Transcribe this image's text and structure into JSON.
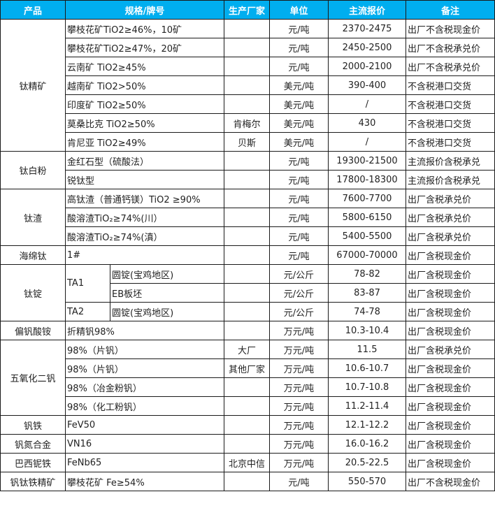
{
  "colors": {
    "header_bg": "#00aeef",
    "header_text": "#ffffff",
    "border": "#1a1a1a"
  },
  "headers": [
    "产品",
    "规格/牌号",
    "生产厂家",
    "单位",
    "主流报价",
    "备注"
  ],
  "groups": [
    {
      "product": "钛精矿",
      "items": [
        {
          "spec": "攀枝花矿TiO2≥46%，10矿",
          "maker": "",
          "unit": "元/吨",
          "price": "2370-2475",
          "note": "出厂不含税现金价"
        },
        {
          "spec": "攀枝花矿TiO2≥47%，20矿",
          "maker": "",
          "unit": "元/吨",
          "price": "2450-2500",
          "note": "出厂不含税承兑价"
        },
        {
          "spec": "云南矿 TiO2≥45%",
          "maker": "",
          "unit": "元/吨",
          "price": "2000-2100",
          "note": "出厂不含税承兑价"
        },
        {
          "spec": "越南矿 TiO2>50%",
          "maker": "",
          "unit": "美元/吨",
          "price": "390-400",
          "note": "不含税港口交货"
        },
        {
          "spec": "印度矿 TiO2≥50%",
          "maker": "",
          "unit": "美元/吨",
          "price": "/",
          "note": "不含税港口交货"
        },
        {
          "spec": "莫桑比克 TiO2≥50%",
          "maker": "肯梅尔",
          "unit": "美元/吨",
          "price": "430",
          "note": "不含税港口交货"
        },
        {
          "spec": "肯尼亚 TiO2≥49%",
          "maker": "贝斯",
          "unit": "美元/吨",
          "price": "/",
          "note": "不含税港口交货"
        }
      ]
    },
    {
      "product": "钛白粉",
      "items": [
        {
          "spec": "金红石型（硫酸法）",
          "maker": "",
          "unit": "元/吨",
          "price": "19300-21500",
          "note": "主流报价含税承兑"
        },
        {
          "spec": "锐钛型",
          "maker": "",
          "unit": "元/吨",
          "price": "17800-18300",
          "note": "主流报价含税承兑"
        }
      ]
    },
    {
      "product": "钛渣",
      "items": [
        {
          "spec": "高钛渣（普通钙镁）TiO2 ≥90%",
          "maker": "",
          "unit": "元/吨",
          "price": "7600-7700",
          "note": "出厂含税承兑价"
        },
        {
          "spec": "酸溶渣TiO₂≥74%(川）",
          "maker": "",
          "unit": "元/吨",
          "price": "5800-6150",
          "note": "出厂含税承兑价"
        },
        {
          "spec": "酸溶渣TiO₂≥74%(滇）",
          "maker": "",
          "unit": "元/吨",
          "price": "5400-5500",
          "note": "出厂含税承兑价"
        }
      ]
    },
    {
      "product": "海绵钛",
      "items": [
        {
          "spec": "1#",
          "maker": "",
          "unit": "元/吨",
          "price": "67000-70000",
          "note": "出厂含税现金价"
        }
      ]
    },
    {
      "product": "钛锭",
      "items": [
        {
          "grade": "TA1",
          "spec": "圆锭(宝鸡地区)",
          "maker": "",
          "unit": "元/公斤",
          "price": "78-82",
          "note": "出厂含税现金价"
        },
        {
          "grade": "TA1",
          "spec": "EB板坯",
          "maker": "",
          "unit": "元/公斤",
          "price": "83-87",
          "note": "出厂含税现金价"
        },
        {
          "grade": "TA2",
          "spec": "圆锭(宝鸡地区)",
          "maker": "",
          "unit": "元/公斤",
          "price": "74-78",
          "note": "出厂含税现金价"
        }
      ]
    },
    {
      "product": "偏钒酸铵",
      "items": [
        {
          "spec": "折精钒98%",
          "maker": "",
          "unit": "万元/吨",
          "price": "10.3-10.4",
          "note": "出厂含税现金价"
        }
      ]
    },
    {
      "product": "五氧化二钒",
      "items": [
        {
          "spec": "98%（片钒）",
          "maker": "大厂",
          "unit": "万元/吨",
          "price": "11.5",
          "note": "出厂含税承兑价"
        },
        {
          "spec": "98%（片钒）",
          "maker": "其他厂家",
          "unit": "万元/吨",
          "price": "10.6-10.7",
          "note": "出厂含税现金价"
        },
        {
          "spec": "98%（冶金粉钒）",
          "maker": "",
          "unit": "万元/吨",
          "price": "10.7-10.8",
          "note": "出厂含税现金价"
        },
        {
          "spec": "98%（化工粉钒）",
          "maker": "",
          "unit": "万元/吨",
          "price": "11.2-11.4",
          "note": "出厂含税现金价"
        }
      ]
    },
    {
      "product": "钒铁",
      "items": [
        {
          "spec": "FeV50",
          "maker": "",
          "unit": "万元/吨",
          "price": "12.1-12.2",
          "note": "出厂含税现金价"
        }
      ]
    },
    {
      "product": "钒氮合金",
      "items": [
        {
          "spec": "VN16",
          "maker": "",
          "unit": "万元/吨",
          "price": "16.0-16.2",
          "note": "出厂含税现金价"
        }
      ]
    },
    {
      "product": "巴西铌铁",
      "items": [
        {
          "spec": "FeNb65",
          "maker": "北京中信",
          "unit": "万元/吨",
          "price": "20.5-22.5",
          "note": "出厂含税现金价"
        }
      ]
    },
    {
      "product": "钒钛铁精矿",
      "items": [
        {
          "spec": "攀枝花矿 Fe≥54%",
          "maker": "",
          "unit": "元/吨",
          "price": "550-570",
          "note": "出厂不含税现金价"
        }
      ]
    }
  ]
}
